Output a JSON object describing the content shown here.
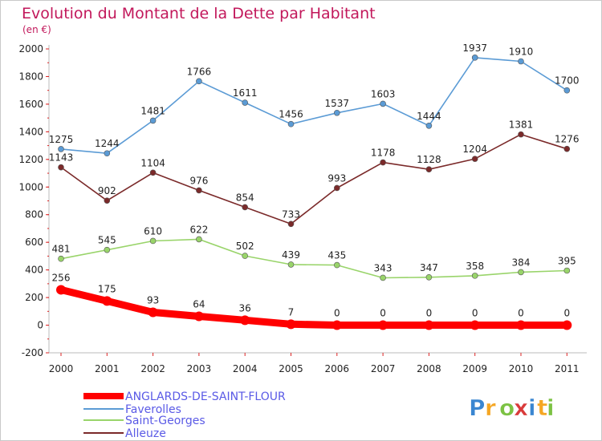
{
  "chart_data": {
    "type": "line",
    "title": "Evolution du Montant de la Dette par Habitant",
    "subtitle": "(en €)",
    "xlabel": "",
    "ylabel": "",
    "categories": [
      "2000",
      "2001",
      "2002",
      "2003",
      "2004",
      "2005",
      "2006",
      "2007",
      "2008",
      "2009",
      "2010",
      "2011"
    ],
    "ylim": [
      -200,
      2000
    ],
    "yticks": [
      -200,
      0,
      200,
      400,
      600,
      800,
      1000,
      1200,
      1400,
      1600,
      1800,
      2000
    ],
    "grid": false,
    "legend_position": "bottom-left",
    "series": [
      {
        "name": "ANGLARDS-DE-SAINT-FLOUR",
        "color": "#ff0000",
        "values": [
          256,
          175,
          93,
          64,
          36,
          7,
          0,
          0,
          0,
          0,
          0,
          0
        ]
      },
      {
        "name": "Faverolles",
        "color": "#5b9bd5",
        "values": [
          1275,
          1244,
          1481,
          1766,
          1611,
          1456,
          1537,
          1603,
          1444,
          1937,
          1910,
          1700
        ]
      },
      {
        "name": "Saint-Georges",
        "color": "#99d46a",
        "values": [
          481,
          545,
          610,
          622,
          502,
          439,
          435,
          343,
          347,
          358,
          384,
          395
        ]
      },
      {
        "name": "Alleuze",
        "color": "#7b2a2a",
        "values": [
          1143,
          902,
          1104,
          976,
          854,
          733,
          993,
          1178,
          1128,
          1204,
          1381,
          1276
        ]
      }
    ]
  },
  "logo": {
    "letters": [
      "P",
      "r",
      "o",
      "x",
      "i",
      "t",
      "i"
    ],
    "colors": [
      "#3a86d1",
      "#f5a623",
      "#7cc243",
      "#d93a3a",
      "#3a86d1",
      "#f5a623",
      "#7cc243"
    ]
  }
}
